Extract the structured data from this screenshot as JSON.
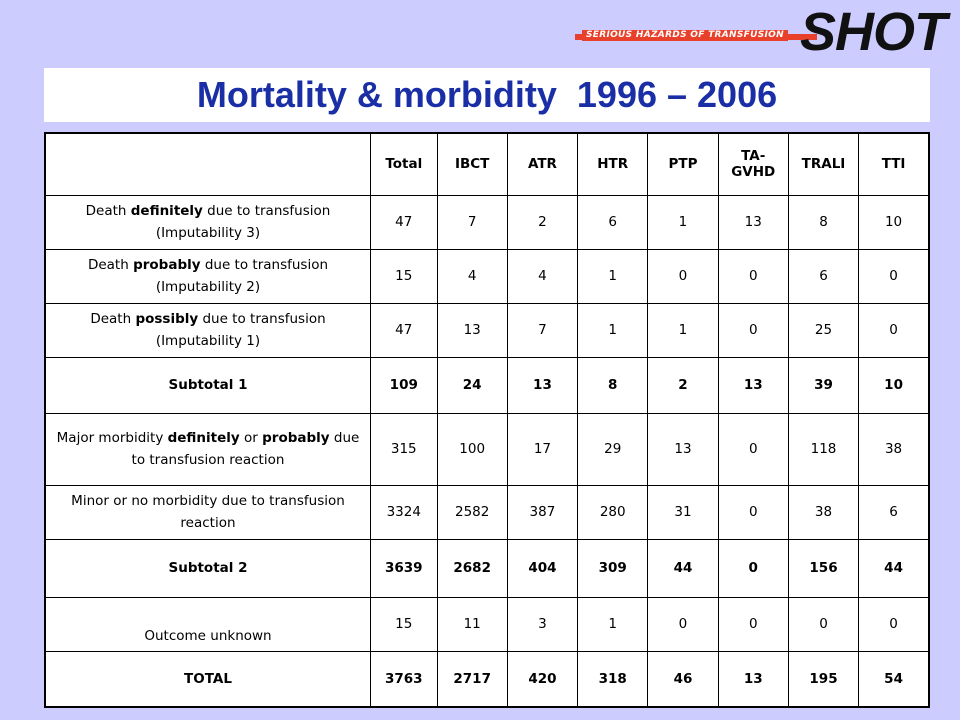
{
  "logo": {
    "name": "SHOT",
    "tagline": "SERIOUS HAZARDS OF TRANSFUSION"
  },
  "title": "Mortality & morbidity  1996 – 2006",
  "table": {
    "headers": [
      "",
      "Total",
      "IBCT",
      "ATR",
      "HTR",
      "PTP",
      "TA-GVHD",
      "TRALI",
      "TTI"
    ],
    "rows": [
      {
        "label_parts": [
          "Death ",
          "definitely",
          " due to transfusion (Imputability 3)"
        ],
        "values": [
          "47",
          "7",
          "2",
          "6",
          "1",
          "13",
          "8",
          "10"
        ]
      },
      {
        "label_parts": [
          "Death ",
          "probably",
          " due to transfusion (Imputability 2)"
        ],
        "values": [
          "15",
          "4",
          "4",
          "1",
          "0",
          "0",
          "6",
          "0"
        ]
      },
      {
        "label_parts": [
          "Death ",
          "possibly",
          " due to transfusion (Imputability 1)"
        ],
        "values": [
          "47",
          "13",
          "7",
          "1",
          "1",
          "0",
          "25",
          "0"
        ]
      },
      {
        "subtotal_label": "Subtotal 1",
        "values": [
          "109",
          "24",
          "13",
          "8",
          "2",
          "13",
          "39",
          "10"
        ]
      },
      {
        "label_parts": [
          "Major morbidity ",
          "definitely",
          " or ",
          "probably",
          " due to transfusion reaction"
        ],
        "values": [
          "315",
          "100",
          "17",
          "29",
          "13",
          "0",
          "118",
          "38"
        ]
      },
      {
        "label_parts": [
          "Minor or no morbidity due to transfusion reaction"
        ],
        "values": [
          "3324",
          "2582",
          "387",
          "280",
          "31",
          "0",
          "38",
          "6"
        ]
      },
      {
        "subtotal_label": "Subtotal 2",
        "values": [
          "3639",
          "2682",
          "404",
          "309",
          "44",
          "0",
          "156",
          "44"
        ]
      },
      {
        "label_parts": [
          "Outcome unknown"
        ],
        "values": [
          "15",
          "11",
          "3",
          "1",
          "0",
          "0",
          "0",
          "0"
        ]
      },
      {
        "total_label": "TOTAL",
        "values": [
          "3763",
          "2717",
          "420",
          "318",
          "46",
          "13",
          "195",
          "54"
        ]
      }
    ]
  },
  "colors": {
    "background": "#ccccff",
    "title": "#1a2ea6",
    "logo_bar": "#e8402a"
  }
}
